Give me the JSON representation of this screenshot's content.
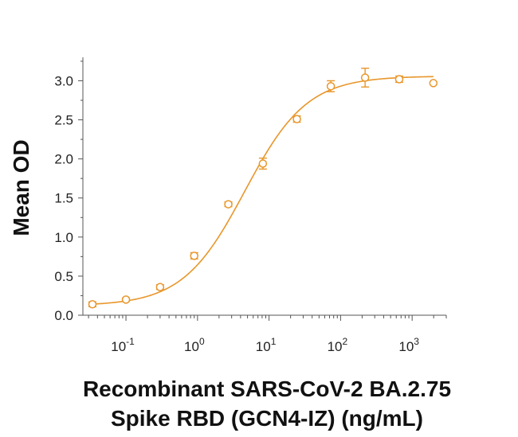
{
  "chart_data": {
    "type": "scatter",
    "title": "",
    "ylabel": "Mean OD",
    "xlabel_line1": "Recombinant SARS-CoV-2 BA.2.75",
    "xlabel_line2": "Spike RBD (GCN4-IZ) (ng/mL)",
    "x_scale": "log",
    "xlim": [
      0.025,
      3000
    ],
    "ylim": [
      0,
      3.3
    ],
    "y_ticks": [
      "0.0",
      "0.5",
      "1.0",
      "1.5",
      "2.0",
      "2.5",
      "3.0"
    ],
    "x_ticks": [
      {
        "base": "10",
        "exp": "-1",
        "value": 0.1
      },
      {
        "base": "10",
        "exp": "0",
        "value": 1
      },
      {
        "base": "10",
        "exp": "1",
        "value": 10
      },
      {
        "base": "10",
        "exp": "2",
        "value": 100
      },
      {
        "base": "10",
        "exp": "3",
        "value": 1000
      }
    ],
    "color": "#e8962a",
    "grid": false,
    "series": [
      {
        "points": [
          {
            "x": 0.034,
            "y": 0.14,
            "err": 0.03
          },
          {
            "x": 0.1,
            "y": 0.2,
            "err": 0.02
          },
          {
            "x": 0.3,
            "y": 0.36,
            "err": 0.03
          },
          {
            "x": 0.9,
            "y": 0.76,
            "err": 0.04
          },
          {
            "x": 2.7,
            "y": 1.42,
            "err": 0.03
          },
          {
            "x": 8.2,
            "y": 1.94,
            "err": 0.07
          },
          {
            "x": 24.5,
            "y": 2.51,
            "err": 0.04
          },
          {
            "x": 73,
            "y": 2.93,
            "err": 0.07
          },
          {
            "x": 220,
            "y": 3.04,
            "err": 0.12
          },
          {
            "x": 660,
            "y": 3.02,
            "err": 0.04
          },
          {
            "x": 1980,
            "y": 2.97,
            "err": 0
          }
        ],
        "fit": {
          "bottom": 0.12,
          "top": 3.06,
          "ec50": 4.6,
          "hill": 1.0
        }
      }
    ]
  }
}
